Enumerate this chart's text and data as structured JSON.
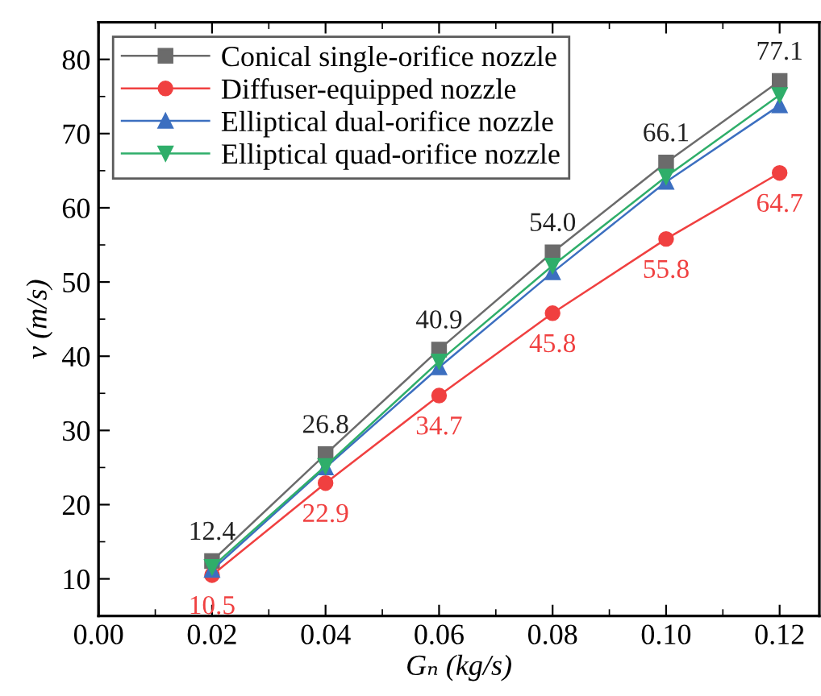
{
  "chart_data": {
    "type": "line",
    "xlabel": "Gₙ (kg/s)",
    "ylabel": "v (m/s)",
    "x": [
      0.02,
      0.04,
      0.06,
      0.08,
      0.1,
      0.12
    ],
    "xlim": [
      0,
      0.127
    ],
    "xticks": [
      {
        "value": 0,
        "label": "0.00"
      },
      0.02,
      0.04,
      0.06,
      0.08,
      {
        "value": 0.1,
        "label": "0.10"
      },
      0.12
    ],
    "ylim": [
      5,
      85
    ],
    "yticks": [
      10,
      20,
      30,
      40,
      50,
      60,
      70,
      80
    ],
    "legend": "top left",
    "grid": false,
    "series": [
      {
        "name": "Conical single-orifice nozzle",
        "color": "#6b6b6b",
        "marker": "square",
        "values": [
          12.4,
          26.8,
          40.9,
          54.0,
          66.1,
          77.1
        ],
        "value_labels": [
          "12.4",
          "26.8",
          "40.9",
          "54.0",
          "66.1",
          "77.1"
        ]
      },
      {
        "name": "Diffuser-equipped nozzle",
        "color": "#f04040",
        "marker": "circle",
        "values": [
          10.5,
          22.9,
          34.7,
          45.8,
          55.8,
          64.7
        ],
        "value_labels": [
          "10.5",
          "22.9",
          "34.7",
          "45.8",
          "55.8",
          "64.7"
        ]
      },
      {
        "name": "Elliptical dual-orifice nozzle",
        "color": "#3c6fc0",
        "marker": "triangle",
        "values": [
          11.2,
          25.0,
          38.5,
          51.3,
          63.5,
          73.8
        ]
      },
      {
        "name": "Elliptical quad-orifice nozzle",
        "color": "#2fae6a",
        "marker": "triangle_down",
        "values": [
          11.6,
          25.2,
          39.3,
          52.2,
          64.2,
          75.2
        ]
      }
    ]
  }
}
